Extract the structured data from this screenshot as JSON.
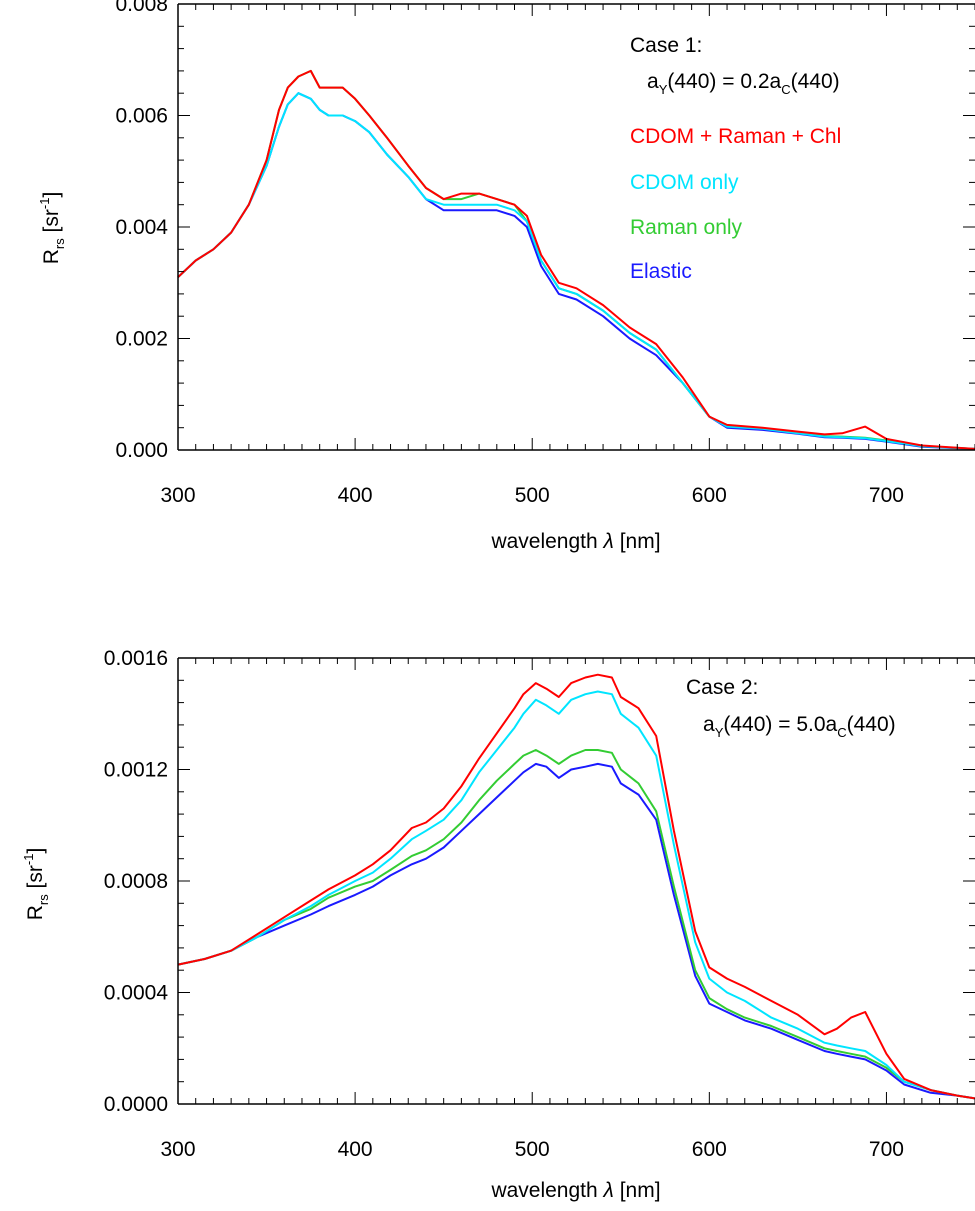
{
  "colors": {
    "cdom_raman_chl": "#ff0000",
    "cdom_only": "#00e5ff",
    "raman_only": "#33cc33",
    "elastic": "#1a1aff"
  },
  "chart_data": [
    {
      "type": "line",
      "xlabel": "wavelength",
      "xlabel_symbol": "λ",
      "xlabel_unit": "[nm]",
      "ylabel_main": "R",
      "ylabel_sub": "rs",
      "ylabel_unit_open": "[sr",
      "ylabel_unit_sup": "-1",
      "ylabel_unit_close": "]",
      "xlim": [
        300,
        750
      ],
      "ylim": [
        0,
        0.008
      ],
      "xticks": [
        300,
        400,
        500,
        600,
        700
      ],
      "yticks": [
        0,
        0.002,
        0.004,
        0.006,
        0.008
      ],
      "ytick_labels": [
        "0.000",
        "0.002",
        "0.004",
        "0.006",
        "0.008"
      ],
      "annotation": {
        "line1": "Case 1:",
        "a": "a",
        "a_sub": "Y",
        "mid": "(440) = 0.2a",
        "c_sub": "C",
        "end": "(440)"
      },
      "legend": [
        "CDOM + Raman + Chl",
        "CDOM only",
        "Raman only",
        "Elastic"
      ],
      "series": [
        {
          "name": "CDOM + Raman + Chl",
          "x": [
            300,
            310,
            320,
            330,
            340,
            350,
            357,
            362,
            368,
            375,
            380,
            385,
            393,
            400,
            408,
            418,
            430,
            440,
            450,
            460,
            470,
            480,
            490,
            497,
            505,
            515,
            525,
            540,
            555,
            570,
            585,
            600,
            610,
            630,
            650,
            665,
            675,
            688,
            700,
            720,
            750
          ],
          "y": [
            0.0031,
            0.0034,
            0.0036,
            0.0039,
            0.0044,
            0.0052,
            0.0061,
            0.0065,
            0.0067,
            0.0068,
            0.0065,
            0.0065,
            0.0065,
            0.0063,
            0.006,
            0.0056,
            0.0051,
            0.0047,
            0.0045,
            0.0046,
            0.0046,
            0.0045,
            0.0044,
            0.0042,
            0.0035,
            0.003,
            0.0029,
            0.0026,
            0.0022,
            0.0019,
            0.0013,
            0.0006,
            0.00045,
            0.0004,
            0.00033,
            0.00028,
            0.0003,
            0.00042,
            0.0002,
            8e-05,
            2e-05
          ]
        },
        {
          "name": "CDOM only",
          "x": [
            300,
            310,
            320,
            330,
            340,
            350,
            357,
            362,
            368,
            375,
            380,
            385,
            393,
            400,
            408,
            418,
            430,
            440,
            450,
            460,
            470,
            480,
            490,
            497,
            505,
            515,
            525,
            540,
            555,
            570,
            585,
            600,
            610,
            630,
            650,
            665,
            675,
            688,
            700,
            720,
            750
          ],
          "y": [
            0.0031,
            0.0034,
            0.0036,
            0.0039,
            0.0044,
            0.0051,
            0.0058,
            0.0062,
            0.0064,
            0.0063,
            0.0061,
            0.006,
            0.006,
            0.0059,
            0.0057,
            0.0053,
            0.0049,
            0.0045,
            0.0044,
            0.0044,
            0.0044,
            0.0044,
            0.0043,
            0.0041,
            0.0034,
            0.0029,
            0.0028,
            0.0025,
            0.0021,
            0.0018,
            0.0012,
            0.0006,
            0.00042,
            0.00038,
            0.0003,
            0.00024,
            0.00023,
            0.00021,
            0.00016,
            7e-05,
            2e-05
          ]
        },
        {
          "name": "Raman only",
          "x": [
            300,
            310,
            320,
            330,
            340,
            350,
            357,
            362,
            368,
            375,
            380,
            385,
            393,
            400,
            408,
            418,
            430,
            440,
            450,
            460,
            470,
            480,
            490,
            497,
            505,
            515,
            525,
            540,
            555,
            570,
            585,
            600,
            610,
            630,
            650,
            665,
            675,
            688,
            700,
            720,
            750
          ],
          "y": [
            0.0031,
            0.0034,
            0.0036,
            0.0039,
            0.0044,
            0.0052,
            0.0061,
            0.0065,
            0.0067,
            0.0068,
            0.0065,
            0.0065,
            0.0065,
            0.0063,
            0.006,
            0.0056,
            0.0051,
            0.0047,
            0.0045,
            0.0045,
            0.0046,
            0.0045,
            0.0044,
            0.0041,
            0.0034,
            0.0029,
            0.0028,
            0.0025,
            0.0021,
            0.0018,
            0.0012,
            0.0006,
            0.00043,
            0.00039,
            0.00031,
            0.00025,
            0.00024,
            0.00022,
            0.00017,
            7e-05,
            2e-05
          ]
        },
        {
          "name": "Elastic",
          "x": [
            300,
            310,
            320,
            330,
            340,
            350,
            357,
            362,
            368,
            375,
            380,
            385,
            393,
            400,
            408,
            418,
            430,
            440,
            450,
            460,
            470,
            480,
            490,
            497,
            505,
            515,
            525,
            540,
            555,
            570,
            585,
            600,
            610,
            630,
            650,
            665,
            675,
            688,
            700,
            720,
            750
          ],
          "y": [
            0.0031,
            0.0034,
            0.0036,
            0.0039,
            0.0044,
            0.0051,
            0.0058,
            0.0062,
            0.0064,
            0.0063,
            0.0061,
            0.006,
            0.006,
            0.0059,
            0.0057,
            0.0053,
            0.0049,
            0.0045,
            0.0043,
            0.0043,
            0.0043,
            0.0043,
            0.0042,
            0.004,
            0.0033,
            0.0028,
            0.0027,
            0.0024,
            0.002,
            0.0017,
            0.0012,
            0.0006,
            0.0004,
            0.00036,
            0.00029,
            0.00023,
            0.00022,
            0.0002,
            0.00015,
            6e-05,
            2e-05
          ]
        }
      ]
    },
    {
      "type": "line",
      "xlabel": "wavelength",
      "xlabel_symbol": "λ",
      "xlabel_unit": "[nm]",
      "ylabel_main": "R",
      "ylabel_sub": "rs",
      "ylabel_unit_open": "[sr",
      "ylabel_unit_sup": "-1",
      "ylabel_unit_close": "]",
      "xlim": [
        300,
        750
      ],
      "ylim": [
        0,
        0.0016
      ],
      "xticks": [
        300,
        400,
        500,
        600,
        700
      ],
      "yticks": [
        0,
        0.0004,
        0.0008,
        0.0012,
        0.0016
      ],
      "ytick_labels": [
        "0.0000",
        "0.0004",
        "0.0008",
        "0.0012",
        "0.0016"
      ],
      "annotation": {
        "line1": "Case 2:",
        "a": "a",
        "a_sub": "Y",
        "mid": "(440) = 5.0a",
        "c_sub": "C",
        "end": "(440)"
      },
      "series": [
        {
          "name": "CDOM + Raman + Chl",
          "x": [
            300,
            315,
            330,
            345,
            360,
            375,
            385,
            400,
            410,
            420,
            432,
            440,
            450,
            460,
            470,
            480,
            490,
            495,
            502,
            508,
            515,
            522,
            530,
            537,
            545,
            550,
            560,
            570,
            580,
            592,
            600,
            610,
            620,
            635,
            650,
            665,
            672,
            680,
            688,
            700,
            710,
            725,
            740,
            750
          ],
          "y": [
            0.0005,
            0.00052,
            0.00055,
            0.00061,
            0.00067,
            0.00073,
            0.00077,
            0.00082,
            0.00086,
            0.00091,
            0.00099,
            0.00101,
            0.00106,
            0.00114,
            0.00124,
            0.00133,
            0.00142,
            0.00147,
            0.00151,
            0.00149,
            0.00146,
            0.00151,
            0.00153,
            0.00154,
            0.00153,
            0.00146,
            0.00142,
            0.00132,
            0.00098,
            0.00062,
            0.00049,
            0.00045,
            0.00042,
            0.00037,
            0.00032,
            0.00025,
            0.00027,
            0.00031,
            0.00033,
            0.00018,
            9e-05,
            5e-05,
            3e-05,
            2e-05
          ]
        },
        {
          "name": "CDOM only",
          "x": [
            300,
            315,
            330,
            345,
            360,
            375,
            385,
            400,
            410,
            420,
            432,
            440,
            450,
            460,
            470,
            480,
            490,
            495,
            502,
            508,
            515,
            522,
            530,
            537,
            545,
            550,
            560,
            570,
            580,
            592,
            600,
            610,
            620,
            635,
            650,
            665,
            672,
            680,
            688,
            700,
            710,
            725,
            740,
            750
          ],
          "y": [
            0.0005,
            0.00052,
            0.00055,
            0.0006,
            0.00066,
            0.00071,
            0.00075,
            0.0008,
            0.00083,
            0.00088,
            0.00095,
            0.00098,
            0.00102,
            0.00109,
            0.00119,
            0.00127,
            0.00135,
            0.0014,
            0.00145,
            0.00143,
            0.0014,
            0.00145,
            0.00147,
            0.00148,
            0.00147,
            0.0014,
            0.00135,
            0.00125,
            0.00093,
            0.00058,
            0.00045,
            0.0004,
            0.00037,
            0.00031,
            0.00027,
            0.00022,
            0.00021,
            0.0002,
            0.00019,
            0.00014,
            8e-05,
            5e-05,
            3e-05,
            2e-05
          ]
        },
        {
          "name": "Raman only",
          "x": [
            300,
            315,
            330,
            345,
            360,
            375,
            385,
            400,
            410,
            420,
            432,
            440,
            450,
            460,
            470,
            480,
            490,
            495,
            502,
            508,
            515,
            522,
            530,
            537,
            545,
            550,
            560,
            570,
            580,
            592,
            600,
            610,
            620,
            635,
            650,
            665,
            672,
            680,
            688,
            700,
            710,
            725,
            740,
            750
          ],
          "y": [
            0.0005,
            0.00052,
            0.00055,
            0.0006,
            0.00066,
            0.0007,
            0.00074,
            0.00078,
            0.0008,
            0.00084,
            0.00089,
            0.00091,
            0.00095,
            0.00101,
            0.00109,
            0.00116,
            0.00122,
            0.00125,
            0.00127,
            0.00125,
            0.00122,
            0.00125,
            0.00127,
            0.00127,
            0.00126,
            0.0012,
            0.00115,
            0.00105,
            0.00078,
            0.00048,
            0.00038,
            0.00034,
            0.00031,
            0.00028,
            0.00024,
            0.0002,
            0.00019,
            0.00018,
            0.00017,
            0.00013,
            8e-05,
            5e-05,
            3e-05,
            2e-05
          ]
        },
        {
          "name": "Elastic",
          "x": [
            300,
            315,
            330,
            345,
            360,
            375,
            385,
            400,
            410,
            420,
            432,
            440,
            450,
            460,
            470,
            480,
            490,
            495,
            502,
            508,
            515,
            522,
            530,
            537,
            545,
            550,
            560,
            570,
            580,
            592,
            600,
            610,
            620,
            635,
            650,
            665,
            672,
            680,
            688,
            700,
            710,
            725,
            740,
            750
          ],
          "y": [
            0.0005,
            0.00052,
            0.00055,
            0.0006,
            0.00064,
            0.00068,
            0.00071,
            0.00075,
            0.00078,
            0.00082,
            0.00086,
            0.00088,
            0.00092,
            0.00098,
            0.00104,
            0.0011,
            0.00116,
            0.00119,
            0.00122,
            0.00121,
            0.00117,
            0.0012,
            0.00121,
            0.00122,
            0.00121,
            0.00115,
            0.00111,
            0.00102,
            0.00075,
            0.00046,
            0.00036,
            0.00033,
            0.0003,
            0.00027,
            0.00023,
            0.00019,
            0.00018,
            0.00017,
            0.00016,
            0.00012,
            7e-05,
            4e-05,
            3e-05,
            2e-05
          ]
        }
      ]
    }
  ]
}
